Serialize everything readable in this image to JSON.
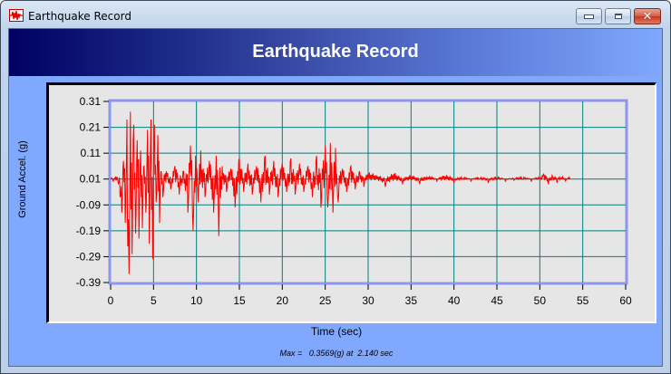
{
  "window": {
    "title": "Earthquake Record",
    "icon": "seismograph-icon",
    "controls": {
      "minimize": "minimize",
      "maximize": "maximize",
      "close": "close"
    }
  },
  "header": {
    "title": "Earthquake Record"
  },
  "footer": {
    "max_label": "Max =",
    "max_value": "0.3569(g)",
    "at_label": "at",
    "at_time": "2.140 sec"
  },
  "colors": {
    "header_gradient_start": "#000060",
    "header_gradient_end": "#80a8ff",
    "client_bg": "#80a8ff",
    "plot_bg": "#e6e6e6",
    "grid": "#008080",
    "plot_border": "#8c96ef",
    "trace": "#ff0000"
  },
  "chart_data": {
    "type": "line",
    "title": "Earthquake Record",
    "xlabel": "Time (sec)",
    "ylabel": "Ground Accel. (g)",
    "xlim": [
      0,
      60
    ],
    "ylim": [
      -0.39,
      0.31
    ],
    "x_ticks": [
      "0",
      "5",
      "10",
      "15",
      "20",
      "25",
      "30",
      "35",
      "40",
      "45",
      "50",
      "55",
      "60"
    ],
    "y_ticks": [
      "0.31",
      "0.21",
      "0.11",
      "0.01",
      "-0.09",
      "-0.19",
      "-0.29",
      "-0.39"
    ],
    "grid": true,
    "legend": null,
    "annotation": "Max =   0.3569(g) at  2.140 sec",
    "series": [
      {
        "name": "Ground Acceleration",
        "color": "#ff0000",
        "x": [
          0,
          0.3,
          0.6,
          0.9,
          1.1,
          1.3,
          1.5,
          1.7,
          1.9,
          2.0,
          2.14,
          2.3,
          2.5,
          2.7,
          2.9,
          3.1,
          3.3,
          3.5,
          3.7,
          3.9,
          4.1,
          4.3,
          4.5,
          4.7,
          4.9,
          5.1,
          5.3,
          5.5,
          5.7,
          5.9,
          6.1,
          6.5,
          7.0,
          7.5,
          8.0,
          8.5,
          9.0,
          9.3,
          9.6,
          9.9,
          10.2,
          10.5,
          11.0,
          11.5,
          12.0,
          12.3,
          12.6,
          13.0,
          13.5,
          14.0,
          14.5,
          15.0,
          15.5,
          16.0,
          16.5,
          17.0,
          17.5,
          18.0,
          18.5,
          19.0,
          19.5,
          20.0,
          20.5,
          21.0,
          21.5,
          22.0,
          22.5,
          23.0,
          23.5,
          24.0,
          24.5,
          25.0,
          25.3,
          25.6,
          25.9,
          26.2,
          26.5,
          27.0,
          27.5,
          28.0,
          28.5,
          29.0,
          29.5,
          30.0,
          31.0,
          32.0,
          33.0,
          34.0,
          35.0,
          36.0,
          37.0,
          38.0,
          39.0,
          40.0,
          41.0,
          42.0,
          43.0,
          44.0,
          45.0,
          46.0,
          47.0,
          48.0,
          49.0,
          50.0,
          50.5,
          51.0,
          51.5,
          52.0,
          52.5,
          53.0,
          53.5
        ],
        "y": [
          0.01,
          0.0,
          0.02,
          -0.01,
          -0.06,
          -0.12,
          0.08,
          -0.16,
          0.24,
          -0.25,
          -0.357,
          0.27,
          -0.28,
          0.22,
          -0.2,
          0.16,
          -0.22,
          0.12,
          -0.18,
          0.06,
          -0.12,
          0.2,
          -0.24,
          0.24,
          -0.3,
          0.22,
          -0.08,
          0.18,
          -0.16,
          0.04,
          -0.06,
          0.04,
          -0.03,
          0.06,
          -0.05,
          0.04,
          -0.12,
          0.14,
          -0.19,
          0.1,
          -0.08,
          0.12,
          -0.06,
          0.08,
          -0.12,
          0.1,
          -0.21,
          0.06,
          -0.04,
          0.05,
          -0.1,
          0.09,
          -0.04,
          0.07,
          -0.05,
          0.06,
          -0.08,
          0.1,
          -0.05,
          0.08,
          -0.06,
          0.07,
          -0.04,
          0.09,
          -0.05,
          0.07,
          -0.04,
          0.06,
          -0.06,
          0.1,
          -0.1,
          0.14,
          -0.1,
          0.15,
          -0.12,
          0.13,
          -0.08,
          0.05,
          -0.04,
          0.06,
          -0.03,
          0.04,
          -0.02,
          0.03,
          0.02,
          -0.02,
          0.03,
          -0.01,
          0.02,
          -0.01,
          0.015,
          0.0,
          0.02,
          -0.005,
          0.01,
          0.0,
          0.01,
          -0.005,
          0.01,
          0.0,
          0.005,
          0.01,
          0.0,
          0.01,
          0.025,
          -0.01,
          0.02,
          -0.005,
          0.015,
          0.0,
          0.01
        ]
      }
    ]
  }
}
